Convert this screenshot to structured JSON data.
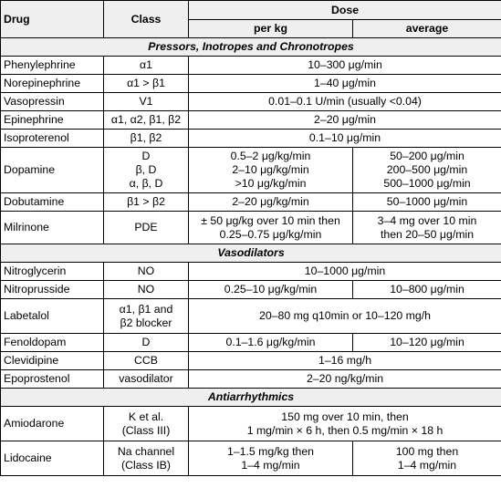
{
  "headers": {
    "drug": "Drug",
    "class": "Class",
    "dose": "Dose",
    "per_kg": "per kg",
    "average": "average"
  },
  "sections": {
    "pressors": "Pressors, Inotropes and Chronotropes",
    "vasodilators": "Vasodilators",
    "antiarrhythmics": "Antiarrhythmics"
  },
  "rows": {
    "phenylephrine": {
      "drug": "Phenylephrine",
      "class": "α1",
      "dose": "10–300 μg/min"
    },
    "norepinephrine": {
      "drug": "Norepinephrine",
      "class": "α1 > β1",
      "dose": "1–40 μg/min"
    },
    "vasopressin": {
      "drug": "Vasopressin",
      "class": "V1",
      "dose": "0.01–0.1 U/min (usually <0.04)"
    },
    "epinephrine": {
      "drug": "Epinephrine",
      "class": "α1, α2, β1, β2",
      "dose": "2–20 μg/min"
    },
    "isoproterenol": {
      "drug": "Isoproterenol",
      "class": "β1, β2",
      "dose": "0.1–10 μg/min"
    },
    "dopamine": {
      "drug": "Dopamine",
      "class": "D\nβ, D\nα, β, D",
      "per_kg": "0.5–2 μg/kg/min\n2–10 μg/kg/min\n>10 μg/kg/min",
      "average": "50–200 μg/min\n200–500 μg/min\n500–1000 μg/min"
    },
    "dobutamine": {
      "drug": "Dobutamine",
      "class": "β1 > β2",
      "per_kg": "2–20 μg/kg/min",
      "average": "50–1000 μg/min"
    },
    "milrinone": {
      "drug": "Milrinone",
      "class": "PDE",
      "per_kg": "± 50 μg/kg over 10 min then\n0.25–0.75 μg/kg/min",
      "average": "3–4 mg over 10 min\nthen 20–50 μg/min"
    },
    "nitroglycerin": {
      "drug": "Nitroglycerin",
      "class": "NO",
      "dose": "10–1000 μg/min"
    },
    "nitroprusside": {
      "drug": "Nitroprusside",
      "class": "NO",
      "per_kg": "0.25–10 μg/kg/min",
      "average": "10–800 μg/min"
    },
    "labetalol": {
      "drug": "Labetalol",
      "class": "α1, β1 and\nβ2 blocker",
      "dose": "20–80 mg q10min or 10–120 mg/h"
    },
    "fenoldopam": {
      "drug": "Fenoldopam",
      "class": "D",
      "per_kg": "0.1–1.6 μg/kg/min",
      "average": "10–120 μg/min"
    },
    "clevidipine": {
      "drug": "Clevidipine",
      "class": "CCB",
      "dose": "1–16 mg/h"
    },
    "epoprostenol": {
      "drug": "Epoprostenol",
      "class": "vasodilator",
      "dose": "2–20 ng/kg/min"
    },
    "amiodarone": {
      "drug": "Amiodarone",
      "class": "K et al.\n(Class III)",
      "dose": "150 mg over 10 min, then\n1 mg/min × 6 h, then 0.5 mg/min × 18 h"
    },
    "lidocaine": {
      "drug": "Lidocaine",
      "class": "Na channel\n(Class IB)",
      "per_kg": "1–1.5 mg/kg then\n1–4 mg/min",
      "average": "100 mg then\n1–4 mg/min"
    }
  }
}
